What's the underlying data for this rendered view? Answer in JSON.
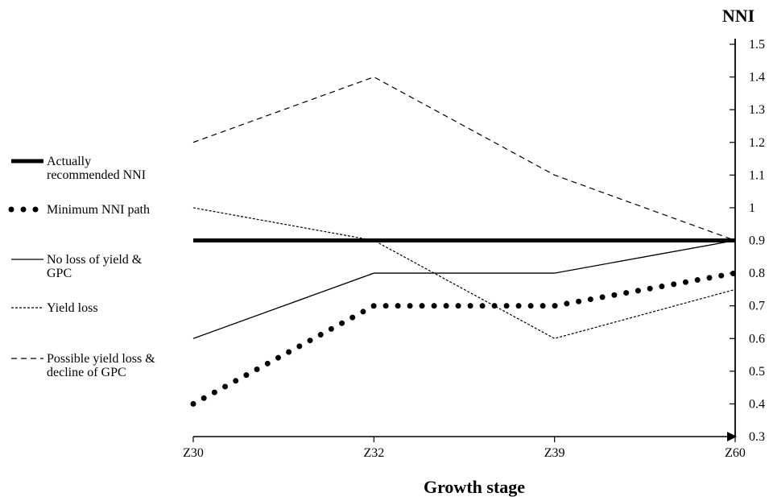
{
  "chart_data": {
    "type": "line",
    "xlabel": "Growth stage",
    "ylabel": "NNI",
    "categories": [
      "Z30",
      "Z32",
      "Z39",
      "Z60"
    ],
    "ylim": [
      0.3,
      1.5
    ],
    "yticks": [
      "0.3",
      "0.4",
      "0.5",
      "0.6",
      "0.7",
      "0.8",
      "0.9",
      "1",
      "1.1",
      "1.2",
      "1.3",
      "1.4",
      "1.5"
    ],
    "y_axis_side": "right",
    "legend_placement": "left",
    "grid": false,
    "series": [
      {
        "key": "recommended",
        "name": "Actually recommended NNI",
        "style": "thick-solid",
        "values": [
          0.9,
          0.9,
          0.9,
          0.9
        ]
      },
      {
        "key": "minimum",
        "name": "Minimum NNI path",
        "style": "dotted",
        "values": [
          0.4,
          0.7,
          0.7,
          0.8
        ]
      },
      {
        "key": "noloss",
        "name": "No loss of yield & GPC",
        "style": "thin-solid",
        "values": [
          0.6,
          0.8,
          0.8,
          0.9
        ]
      },
      {
        "key": "yieldloss",
        "name": "Yield loss",
        "style": "fine-dashed",
        "values": [
          1.0,
          0.9,
          0.6,
          0.75
        ]
      },
      {
        "key": "possible",
        "name": "Possible yield loss & decline of GPC",
        "style": "dashed",
        "values": [
          1.2,
          1.4,
          1.1,
          0.9
        ]
      }
    ],
    "legend": [
      {
        "lines": [
          "Actually",
          "recommended NNI"
        ],
        "style": "thick-solid"
      },
      {
        "lines": [
          "Minimum NNI path"
        ],
        "style": "dotted"
      },
      {
        "lines": [
          "No loss of yield &",
          "GPC"
        ],
        "style": "thin-solid"
      },
      {
        "lines": [
          "Yield loss"
        ],
        "style": "fine-dashed"
      },
      {
        "lines": [
          "Possible yield loss &",
          "decline of GPC"
        ],
        "style": "dashed"
      }
    ]
  }
}
